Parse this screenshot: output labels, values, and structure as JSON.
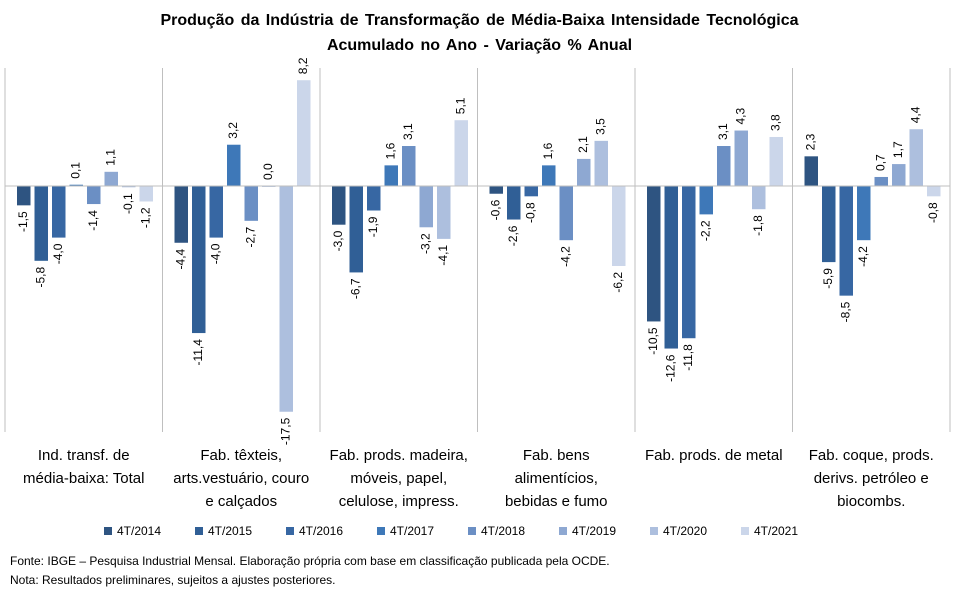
{
  "chart_data": {
    "type": "bar",
    "title": "Produção da Indústria de Transformação de Média-Baixa Intensidade Tecnológica",
    "subtitle": "Acumulado no Ano - Variação % Anual",
    "categories": [
      [
        "Ind. transf. de",
        "média-baixa: Total"
      ],
      [
        "Fab. têxteis,",
        "arts.vestuário, couro",
        "e calçados"
      ],
      [
        "Fab. prods. madeira,",
        "móveis, papel,",
        "celulose, impress."
      ],
      [
        "Fab. bens",
        "alimentícios,",
        "bebidas e fumo"
      ],
      [
        "Fab. prods. de metal"
      ],
      [
        "Fab. coque, prods.",
        "derivs. petróleo e",
        "biocombs."
      ]
    ],
    "series": [
      {
        "name": "4T/2014",
        "color": "#2e5481",
        "values": [
          -1.5,
          -4.4,
          -3.0,
          -0.6,
          -10.5,
          2.3
        ]
      },
      {
        "name": "4T/2015",
        "color": "#305f96",
        "values": [
          -5.8,
          -11.4,
          -6.7,
          -2.6,
          -12.6,
          -5.9
        ]
      },
      {
        "name": "4T/2016",
        "color": "#3767a3",
        "values": [
          -4.0,
          -4.0,
          -1.9,
          -0.8,
          -11.8,
          -8.5
        ]
      },
      {
        "name": "4T/2017",
        "color": "#3e78b8",
        "values": [
          0.1,
          3.2,
          1.6,
          1.6,
          -2.2,
          -4.2
        ]
      },
      {
        "name": "4T/2018",
        "color": "#6b8fc4",
        "values": [
          -1.4,
          -2.7,
          3.1,
          -4.2,
          3.1,
          0.7
        ]
      },
      {
        "name": "4T/2019",
        "color": "#8ea8d2",
        "values": [
          1.1,
          0.0,
          -3.2,
          2.1,
          4.3,
          1.7
        ]
      },
      {
        "name": "4T/2020",
        "color": "#adbfde",
        "values": [
          -0.1,
          -17.5,
          -4.1,
          3.5,
          -1.8,
          4.4
        ]
      },
      {
        "name": "4T/2021",
        "color": "#cbd6ea",
        "values": [
          -1.2,
          8.2,
          5.1,
          -6.2,
          3.8,
          -0.8
        ]
      }
    ],
    "data_labels": [
      [
        "-1,5",
        "-5,8",
        "-4,0",
        "0,1",
        "-1,4",
        "1,1",
        "-0,1",
        "-1,2"
      ],
      [
        "-4,4",
        "-11,4",
        "-4,0",
        "3,2",
        "-2,7",
        "0,0",
        "-17,5",
        "8,2"
      ],
      [
        "-3,0",
        "-6,7",
        "-1,9",
        "1,6",
        "3,1",
        "-3,2",
        "-4,1",
        "5,1"
      ],
      [
        "-0,6",
        "-2,6",
        "-0,8",
        "1,6",
        "-4,2",
        "2,1",
        "3,5",
        "-6,2"
      ],
      [
        "-10,5",
        "-12,6",
        "-11,8",
        "-2,2",
        "3,1",
        "4,3",
        "-1,8",
        "3,8"
      ],
      [
        "2,3",
        "-5,9",
        "-8,5",
        "-4,2",
        "0,7",
        "1,7",
        "4,4",
        "-0,8"
      ]
    ],
    "ylim": [
      -17.5,
      8.2
    ],
    "legend_position": "bottom",
    "grid": false
  },
  "footer": {
    "source": "Fonte: IBGE – Pesquisa Industrial Mensal. Elaboração própria com base em classificação publicada pela OCDE.",
    "note": "Nota: Resultados preliminares, sujeitos a ajustes posteriores."
  }
}
